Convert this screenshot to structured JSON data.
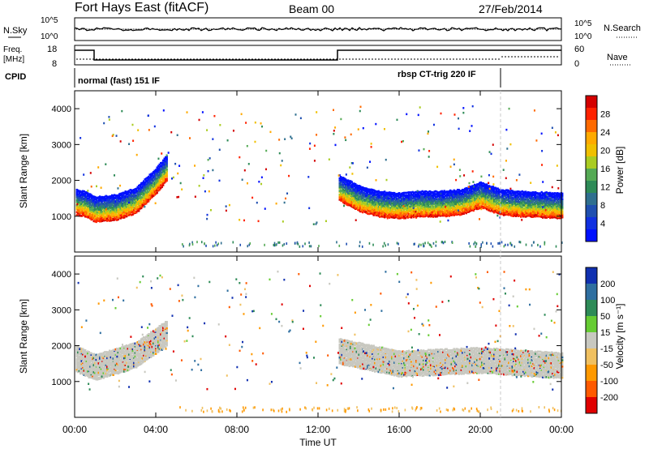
{
  "header": {
    "station": "Fort Hays East (fitACF)",
    "beam": "Beam 00",
    "date": "27/Feb/2014"
  },
  "strips": {
    "nsky": {
      "label": "N.Sky",
      "right_label": "N.Search",
      "ticks_left": [
        "10^5",
        "10^0"
      ],
      "ticks_right": [
        "10^5",
        "10^0"
      ]
    },
    "freq": {
      "label_line1": "Freq.",
      "label_line2": "[MHz]",
      "right_label": "Nave",
      "ticks_left": [
        "18",
        "8"
      ],
      "ticks_right": [
        "60",
        "0"
      ]
    },
    "cpid": {
      "label": "CPID",
      "segments": [
        {
          "text": "normal (fast) 151 IF",
          "start_hour": 0.0
        },
        {
          "text": "rbsp CT-trig 220 IF",
          "start_hour": 21.0
        }
      ]
    }
  },
  "chart_data": [
    {
      "type": "heatmap",
      "panel": "power",
      "xlabel": "",
      "ylabel": "Slant Range [km]",
      "xlim": [
        0,
        24
      ],
      "ylim": [
        0,
        4500
      ],
      "yticks": [
        1000,
        2000,
        3000,
        4000
      ],
      "colorbar": {
        "label": "Power [dB]",
        "ticks": [
          "28",
          "24",
          "20",
          "16",
          "12",
          "8",
          "4"
        ],
        "colors": [
          "#d40000",
          "#ff2200",
          "#ff6a00",
          "#ffaa00",
          "#f0c000",
          "#aacc22",
          "#55aa55",
          "#2e8b57",
          "#2f6f8f",
          "#1f4fb0",
          "#1030e0",
          "#0010ff"
        ]
      },
      "echo_band": [
        {
          "hour": 0.0,
          "range_km": 1150
        },
        {
          "hour": 0.5,
          "range_km": 1100
        },
        {
          "hour": 1.0,
          "range_km": 950
        },
        {
          "hour": 2.0,
          "range_km": 1000
        },
        {
          "hour": 3.0,
          "range_km": 1200
        },
        {
          "hour": 4.0,
          "range_km": 1750
        },
        {
          "hour": 4.5,
          "range_km": 2100
        },
        {
          "hour": 13.0,
          "range_km": 1550
        },
        {
          "hour": 14.0,
          "range_km": 1250
        },
        {
          "hour": 15.0,
          "range_km": 1100
        },
        {
          "hour": 16.0,
          "range_km": 1050
        },
        {
          "hour": 17.0,
          "range_km": 1100
        },
        {
          "hour": 18.0,
          "range_km": 1100
        },
        {
          "hour": 19.0,
          "range_km": 1150
        },
        {
          "hour": 20.0,
          "range_km": 1350
        },
        {
          "hour": 20.5,
          "range_km": 1250
        },
        {
          "hour": 21.0,
          "range_km": 1150
        },
        {
          "hour": 22.0,
          "range_km": 1100
        },
        {
          "hour": 24.0,
          "range_km": 1050
        }
      ]
    },
    {
      "type": "heatmap",
      "panel": "velocity",
      "xlabel": "Time UT",
      "ylabel": "Slant Range [km]",
      "xlim": [
        0,
        24
      ],
      "ylim": [
        0,
        4500
      ],
      "xticks": [
        "00:00",
        "04:00",
        "08:00",
        "12:00",
        "16:00",
        "20:00",
        "00:00"
      ],
      "yticks": [
        1000,
        2000,
        3000,
        4000
      ],
      "colorbar": {
        "label": "Velocity [m s⁻¹]",
        "ticks": [
          "200",
          "100",
          "50",
          "15",
          "-15",
          "-50",
          "-100",
          "-200"
        ],
        "colors": [
          "#1030b0",
          "#2f6fa0",
          "#2e8b57",
          "#66cc33",
          "#c8c8c0",
          "#f0c060",
          "#ff9900",
          "#ff5a00",
          "#e00000"
        ]
      },
      "echo_band": [
        {
          "hour": 0.0,
          "range_km": 1400
        },
        {
          "hour": 1.0,
          "range_km": 1150
        },
        {
          "hour": 3.0,
          "range_km": 1500
        },
        {
          "hour": 4.5,
          "range_km": 2100
        },
        {
          "hour": 13.0,
          "range_km": 1600
        },
        {
          "hour": 16.0,
          "range_km": 1250
        },
        {
          "hour": 20.0,
          "range_km": 1350
        },
        {
          "hour": 24.0,
          "range_km": 1200
        }
      ]
    }
  ],
  "colors": {
    "axis": "#000000",
    "ground_scatter": "#c8c8c0"
  }
}
